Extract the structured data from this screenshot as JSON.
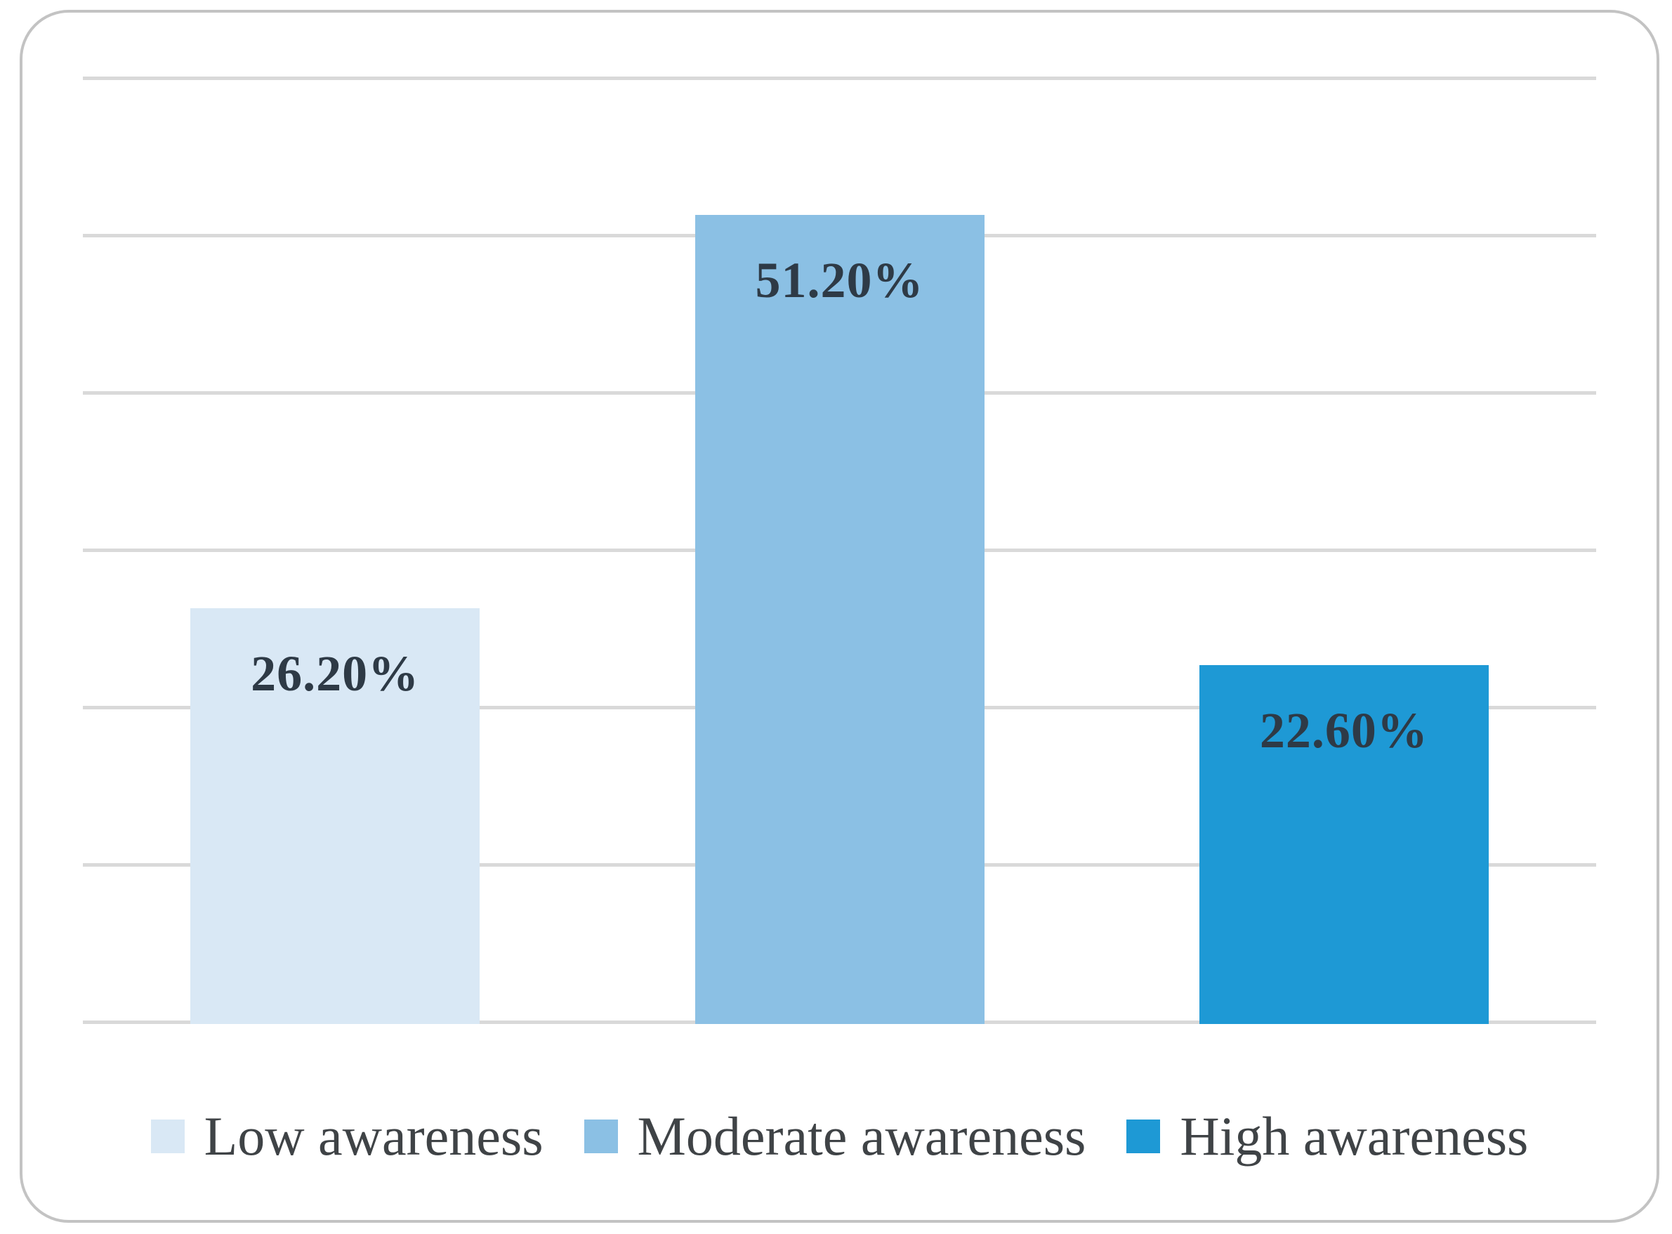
{
  "chart_data": {
    "type": "bar",
    "categories": [
      "Low awareness",
      "Moderate awareness",
      "High awareness"
    ],
    "values": [
      26.2,
      51.2,
      22.6
    ],
    "data_labels": [
      "26.20%",
      "51.20%",
      "22.60%"
    ],
    "series_colors": [
      "#D9E8F5",
      "#8BC0E4",
      "#1E99D5"
    ],
    "title": "",
    "xlabel": "",
    "ylabel": "",
    "ylim": [
      0,
      60
    ],
    "gridline_step": 10,
    "grid": true,
    "axis_tick_labels_visible": false,
    "legend_position": "bottom",
    "legend": [
      {
        "label": "Low awareness",
        "color": "#D9E8F5"
      },
      {
        "label": "Moderate awareness",
        "color": "#8BC0E4"
      },
      {
        "label": "High awareness",
        "color": "#1E99D5"
      }
    ]
  },
  "styles": {
    "background": "#FFFFFF",
    "frame_border_color": "#C3C3C3",
    "gridline_color": "#D9D9D9",
    "data_label_color": "#2E3A46",
    "legend_text_color": "#3F4346"
  }
}
